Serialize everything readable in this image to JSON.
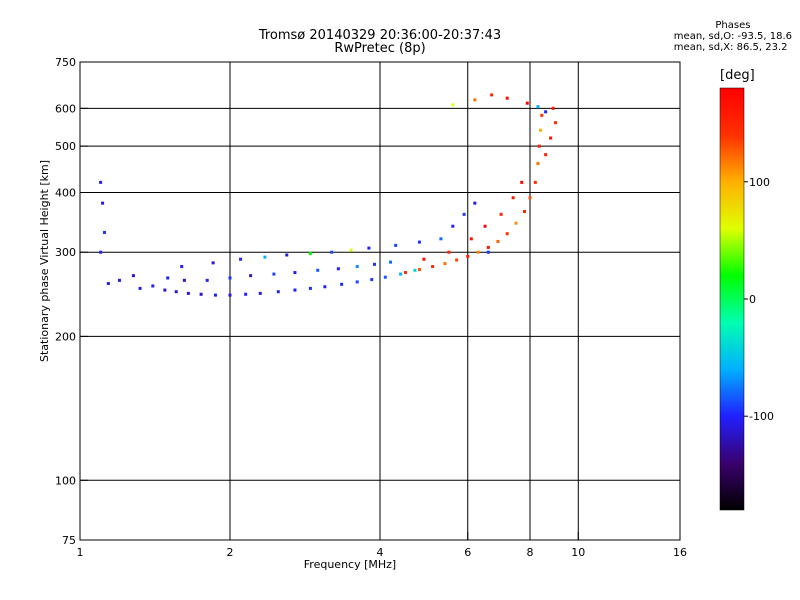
{
  "header": {
    "title_line1": "Tromsø 20140329 20:36:00-20:37:43",
    "title_line2": "RwPretec (8p)"
  },
  "phases_box": {
    "heading": "Phases",
    "line_o": "mean, sd,O: -93.5, 18.6",
    "line_x": "mean, sd,X:  86.5, 23.2"
  },
  "colorbar": {
    "unit_label": "[deg]",
    "ticks": [
      {
        "value": 100,
        "label": "100"
      },
      {
        "value": 0,
        "label": "0"
      },
      {
        "value": -100,
        "label": "-100"
      }
    ],
    "range": [
      -180,
      180
    ],
    "colors": [
      "#000000",
      "#3a006e",
      "#2020ff",
      "#00b0ff",
      "#00ffb0",
      "#00ff00",
      "#e0ff00",
      "#ffb000",
      "#ff3000",
      "#ff0000"
    ]
  },
  "chart_data": {
    "type": "scatter",
    "title": "Tromsø 20140329 20:36:00-20:37:43",
    "subtitle": "RwPretec (8p)",
    "xlabel": "Frequency [MHz]",
    "ylabel": "Stationary phase Virtual Height [km]",
    "x_scale": "log",
    "y_scale": "log",
    "xlim": [
      1,
      16
    ],
    "ylim": [
      75,
      750
    ],
    "xticks": [
      {
        "value": 1,
        "label": "1"
      },
      {
        "value": 2,
        "label": "2"
      },
      {
        "value": 4,
        "label": "4"
      },
      {
        "value": 6,
        "label": "6"
      },
      {
        "value": 8,
        "label": "8"
      },
      {
        "value": 10,
        "label": "10"
      },
      {
        "value": 16,
        "label": "16"
      }
    ],
    "yticks": [
      {
        "value": 75,
        "label": "75"
      },
      {
        "value": 100,
        "label": "100"
      },
      {
        "value": 200,
        "label": "200"
      },
      {
        "value": 300,
        "label": "300"
      },
      {
        "value": 400,
        "label": "400"
      },
      {
        "value": 500,
        "label": "500"
      },
      {
        "value": 600,
        "label": "600"
      },
      {
        "value": 750,
        "label": "750"
      }
    ],
    "grid_x": [
      2,
      4,
      6,
      8,
      10
    ],
    "grid_y": [
      100,
      200,
      300,
      400,
      500,
      600
    ],
    "grid": true,
    "color_encoding": "phase [deg]",
    "series": [
      {
        "values": [
          {
            "x": 1.4,
            "y": 255,
            "p": -105
          },
          {
            "x": 1.48,
            "y": 250,
            "p": -110
          },
          {
            "x": 1.56,
            "y": 248,
            "p": -112
          },
          {
            "x": 1.65,
            "y": 246,
            "p": -108
          },
          {
            "x": 1.75,
            "y": 245,
            "p": -115
          },
          {
            "x": 1.87,
            "y": 244,
            "p": -104
          },
          {
            "x": 2.0,
            "y": 244,
            "p": -110
          },
          {
            "x": 2.15,
            "y": 245,
            "p": -100
          },
          {
            "x": 2.3,
            "y": 246,
            "p": -106
          },
          {
            "x": 2.5,
            "y": 248,
            "p": -98
          },
          {
            "x": 2.7,
            "y": 250,
            "p": -102
          },
          {
            "x": 2.9,
            "y": 252,
            "p": -95
          },
          {
            "x": 3.1,
            "y": 254,
            "p": -100
          },
          {
            "x": 3.35,
            "y": 257,
            "p": -96
          },
          {
            "x": 3.6,
            "y": 260,
            "p": -90
          },
          {
            "x": 3.85,
            "y": 263,
            "p": -92
          },
          {
            "x": 4.1,
            "y": 266,
            "p": -85
          },
          {
            "x": 4.4,
            "y": 270,
            "p": -60
          },
          {
            "x": 4.7,
            "y": 275,
            "p": -40
          },
          {
            "x": 1.5,
            "y": 265,
            "p": -105
          },
          {
            "x": 1.62,
            "y": 262,
            "p": -115
          },
          {
            "x": 1.8,
            "y": 262,
            "p": -100
          },
          {
            "x": 2.0,
            "y": 265,
            "p": -95
          },
          {
            "x": 2.2,
            "y": 268,
            "p": -110
          },
          {
            "x": 2.45,
            "y": 270,
            "p": -90
          },
          {
            "x": 2.7,
            "y": 272,
            "p": -105
          },
          {
            "x": 3.0,
            "y": 275,
            "p": -85
          },
          {
            "x": 3.3,
            "y": 277,
            "p": -100
          },
          {
            "x": 3.6,
            "y": 280,
            "p": -70
          },
          {
            "x": 3.9,
            "y": 283,
            "p": -95
          },
          {
            "x": 4.2,
            "y": 286,
            "p": -80
          },
          {
            "x": 1.6,
            "y": 280,
            "p": -100
          },
          {
            "x": 1.85,
            "y": 285,
            "p": -110
          },
          {
            "x": 2.1,
            "y": 290,
            "p": -98
          },
          {
            "x": 2.35,
            "y": 293,
            "p": -60
          },
          {
            "x": 2.6,
            "y": 296,
            "p": -105
          },
          {
            "x": 2.9,
            "y": 298,
            "p": 20
          },
          {
            "x": 3.2,
            "y": 300,
            "p": -90
          },
          {
            "x": 3.5,
            "y": 303,
            "p": 60
          },
          {
            "x": 3.8,
            "y": 306,
            "p": -100
          },
          {
            "x": 4.3,
            "y": 310,
            "p": -88
          },
          {
            "x": 4.8,
            "y": 315,
            "p": -95
          },
          {
            "x": 5.3,
            "y": 320,
            "p": -80
          },
          {
            "x": 5.6,
            "y": 340,
            "p": -100
          },
          {
            "x": 5.9,
            "y": 360,
            "p": -92
          },
          {
            "x": 6.2,
            "y": 380,
            "p": -105
          },
          {
            "x": 6.6,
            "y": 300,
            "p": -95
          },
          {
            "x": 1.14,
            "y": 258,
            "p": -100
          },
          {
            "x": 1.2,
            "y": 262,
            "p": -108
          },
          {
            "x": 1.28,
            "y": 268,
            "p": -112
          },
          {
            "x": 1.32,
            "y": 252,
            "p": -104
          },
          {
            "x": 1.1,
            "y": 300,
            "p": -100
          },
          {
            "x": 1.12,
            "y": 330,
            "p": -96
          },
          {
            "x": 1.11,
            "y": 380,
            "p": -110
          },
          {
            "x": 1.1,
            "y": 420,
            "p": -100
          }
        ]
      },
      {
        "values": [
          {
            "x": 4.5,
            "y": 272,
            "p": 140
          },
          {
            "x": 4.8,
            "y": 276,
            "p": 130
          },
          {
            "x": 5.1,
            "y": 280,
            "p": 145
          },
          {
            "x": 5.4,
            "y": 284,
            "p": 120
          },
          {
            "x": 5.7,
            "y": 289,
            "p": 135
          },
          {
            "x": 6.0,
            "y": 294,
            "p": 150
          },
          {
            "x": 6.3,
            "y": 300,
            "p": 115
          },
          {
            "x": 6.6,
            "y": 307,
            "p": 160
          },
          {
            "x": 6.9,
            "y": 316,
            "p": 125
          },
          {
            "x": 7.2,
            "y": 328,
            "p": 140
          },
          {
            "x": 7.5,
            "y": 345,
            "p": 110
          },
          {
            "x": 7.8,
            "y": 365,
            "p": 150
          },
          {
            "x": 8.0,
            "y": 390,
            "p": 130
          },
          {
            "x": 8.2,
            "y": 420,
            "p": 145
          },
          {
            "x": 8.3,
            "y": 460,
            "p": 120
          },
          {
            "x": 8.35,
            "y": 500,
            "p": 155
          },
          {
            "x": 8.4,
            "y": 540,
            "p": 100
          },
          {
            "x": 8.45,
            "y": 580,
            "p": 140
          },
          {
            "x": 4.9,
            "y": 290,
            "p": 170
          },
          {
            "x": 5.5,
            "y": 300,
            "p": 150
          },
          {
            "x": 6.1,
            "y": 320,
            "p": 165
          },
          {
            "x": 6.5,
            "y": 340,
            "p": 180
          },
          {
            "x": 7.0,
            "y": 360,
            "p": 150
          },
          {
            "x": 7.4,
            "y": 390,
            "p": 160
          },
          {
            "x": 7.7,
            "y": 420,
            "p": 175
          },
          {
            "x": 8.6,
            "y": 480,
            "p": 155
          },
          {
            "x": 8.8,
            "y": 520,
            "p": 165
          },
          {
            "x": 9.0,
            "y": 560,
            "p": 140
          },
          {
            "x": 8.9,
            "y": 600,
            "p": 170
          },
          {
            "x": 5.6,
            "y": 610,
            "p": 60
          },
          {
            "x": 6.2,
            "y": 625,
            "p": 120
          },
          {
            "x": 6.7,
            "y": 640,
            "p": 150
          },
          {
            "x": 7.2,
            "y": 630,
            "p": 170
          },
          {
            "x": 7.9,
            "y": 615,
            "p": 180
          },
          {
            "x": 8.3,
            "y": 605,
            "p": -60
          },
          {
            "x": 8.6,
            "y": 590,
            "p": -100
          }
        ]
      }
    ]
  }
}
